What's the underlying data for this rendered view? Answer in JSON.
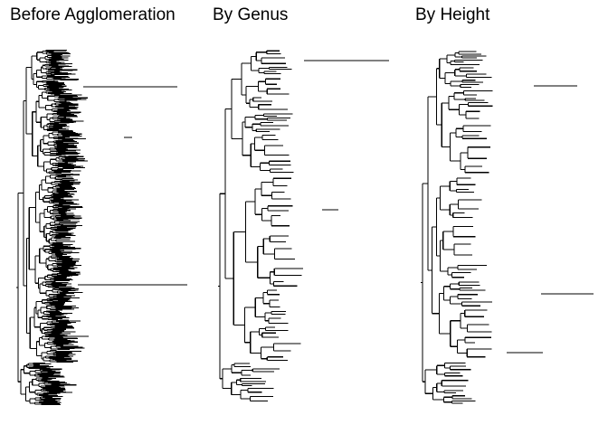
{
  "panels": [
    {
      "title": "Before Agglomeration",
      "tree": "large-unpruned-tree"
    },
    {
      "title": "By Genus",
      "tree": "genus-agglomerated-tree"
    },
    {
      "title": "By Height",
      "tree": "height-agglomerated-tree"
    }
  ],
  "colors": {
    "background": "#ffffff",
    "branch": "#000000",
    "text": "#000000"
  }
}
